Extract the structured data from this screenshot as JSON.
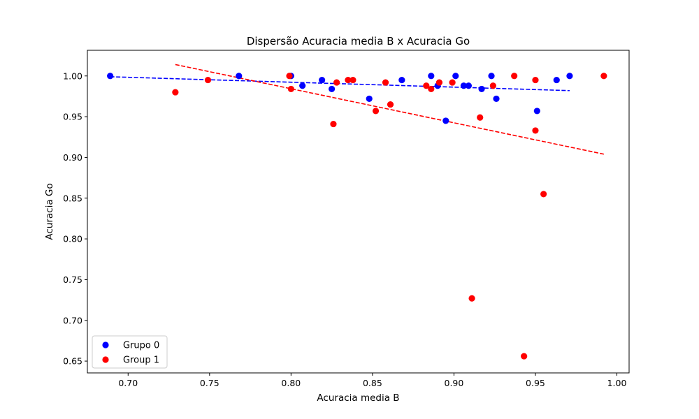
{
  "chart_data": {
    "type": "scatter",
    "title": "Dispersão Acuracia media B x Acuracia Go",
    "xlabel": "Acuracia media B",
    "ylabel": "Acuracia Go",
    "xlim": [
      0.675,
      1.0075
    ],
    "ylim": [
      0.6355,
      1.0315
    ],
    "xticks": [
      0.7,
      0.75,
      0.8,
      0.85,
      0.9,
      0.95,
      1.0
    ],
    "yticks": [
      0.65,
      0.7,
      0.75,
      0.8,
      0.85,
      0.9,
      0.95,
      1.0
    ],
    "legend_position": "lower-left",
    "grid": false,
    "series": [
      {
        "name": "Grupo 0",
        "color": "#0000ff",
        "trend": {
          "x_start": 0.689,
          "x_end": 0.971,
          "y_start": 0.999,
          "y_end": 0.982
        },
        "x": [
          0.689,
          0.768,
          0.8,
          0.807,
          0.819,
          0.825,
          0.848,
          0.868,
          0.886,
          0.89,
          0.895,
          0.901,
          0.906,
          0.909,
          0.917,
          0.923,
          0.926,
          0.951,
          0.963,
          0.971
        ],
        "y": [
          1.0,
          1.0,
          1.0,
          0.988,
          0.995,
          0.984,
          0.972,
          0.995,
          1.0,
          0.988,
          0.945,
          1.0,
          0.988,
          0.988,
          0.984,
          1.0,
          0.972,
          0.957,
          0.995,
          1.0
        ]
      },
      {
        "name": "Group 1",
        "color": "#ff0000",
        "trend": {
          "x_start": 0.729,
          "x_end": 0.992,
          "y_start": 1.014,
          "y_end": 0.904
        },
        "x": [
          0.729,
          0.749,
          0.799,
          0.8,
          0.826,
          0.828,
          0.835,
          0.838,
          0.852,
          0.858,
          0.861,
          0.883,
          0.886,
          0.891,
          0.899,
          0.911,
          0.916,
          0.924,
          0.937,
          0.943,
          0.95,
          0.95,
          0.955,
          0.992
        ],
        "y": [
          0.98,
          0.995,
          1.0,
          0.984,
          0.941,
          0.992,
          0.995,
          0.995,
          0.957,
          0.992,
          0.965,
          0.988,
          0.984,
          0.992,
          0.992,
          0.727,
          0.949,
          0.988,
          1.0,
          0.656,
          0.995,
          0.933,
          0.855,
          1.0
        ]
      }
    ]
  }
}
